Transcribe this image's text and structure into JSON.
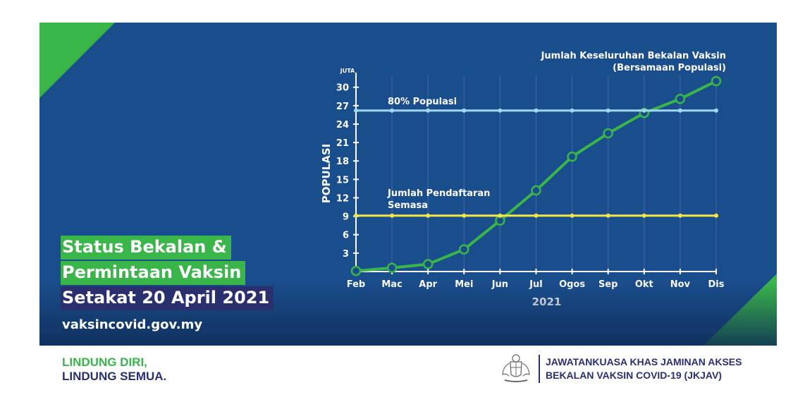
{
  "title": {
    "line1": "Status Bekalan &",
    "line2": "Permintaan Vaksin",
    "line3": "Setakat 20 April 2021"
  },
  "website": "vaksincovid.gov.my",
  "slogan": {
    "line1": "LINDUNG DIRI,",
    "line2": "LINDUNG SEMUA."
  },
  "organization": {
    "line1": "JAWATANKUASA KHAS JAMINAN AKSES",
    "line2": "BEKALAN VAKSIN COVID-19 (JKJAV)"
  },
  "colors": {
    "panel": "#1a4d8c",
    "green": "#39b54a",
    "navy": "#2a2f6e",
    "population_line": "#9fd8f5",
    "registration_line": "#f2e64a",
    "supply_line": "#39b54a"
  },
  "chart_data": {
    "type": "line",
    "unit_label": "JUTA",
    "ylabel": "POPULASI",
    "xlabel": "2021",
    "categories": [
      "Feb",
      "Mac",
      "Apr",
      "Mei",
      "Jun",
      "Jul",
      "Ogos",
      "Sep",
      "Okt",
      "Nov",
      "Dis"
    ],
    "yticks": [
      3,
      6,
      9,
      12,
      15,
      18,
      21,
      24,
      27,
      30
    ],
    "ylim": [
      0,
      31
    ],
    "series": [
      {
        "name": "Jumlah Keseluruhan Bekalan Vaksin (Bersamaan Populasi)",
        "label_lines": [
          "Jumlah Keseluruhan Bekalan Vaksin",
          "(Bersamaan Populasi)"
        ],
        "values": [
          0.1,
          0.6,
          1.2,
          3.6,
          8.3,
          13.2,
          18.7,
          22.5,
          25.8,
          28.1,
          31.0
        ]
      },
      {
        "name": "80% Populasi",
        "label_lines": [
          "80% Populasi"
        ],
        "values": [
          26.2,
          26.2,
          26.2,
          26.2,
          26.2,
          26.2,
          26.2,
          26.2,
          26.2,
          26.2,
          26.2
        ]
      },
      {
        "name": "Jumlah Pendaftaran Semasa",
        "label_lines": [
          "Jumlah Pendaftaran",
          "Semasa"
        ],
        "values": [
          9.1,
          9.1,
          9.1,
          9.1,
          9.1,
          9.1,
          9.1,
          9.1,
          9.1,
          9.1,
          9.1
        ]
      }
    ]
  }
}
